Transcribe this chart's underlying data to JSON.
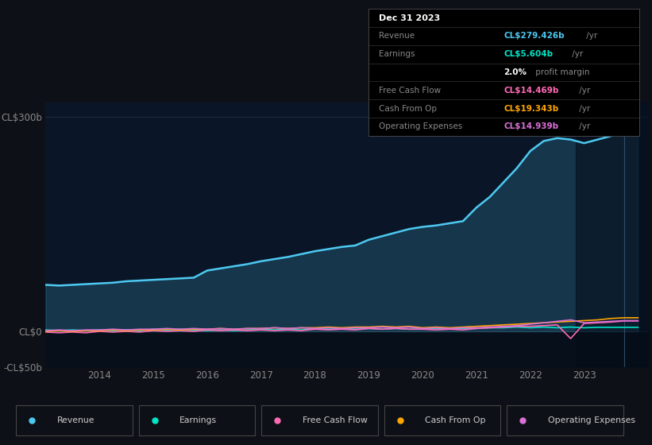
{
  "bg_color": "#0d1117",
  "plot_bg_color": "#0a1628",
  "plot_bg_below_zero": "#071020",
  "title": "Dec 31 2023",
  "years": [
    2013.0,
    2013.25,
    2013.5,
    2013.75,
    2014.0,
    2014.25,
    2014.5,
    2014.75,
    2015.0,
    2015.25,
    2015.5,
    2015.75,
    2016.0,
    2016.25,
    2016.5,
    2016.75,
    2017.0,
    2017.25,
    2017.5,
    2017.75,
    2018.0,
    2018.25,
    2018.5,
    2018.75,
    2019.0,
    2019.25,
    2019.5,
    2019.75,
    2020.0,
    2020.25,
    2020.5,
    2020.75,
    2021.0,
    2021.25,
    2021.5,
    2021.75,
    2022.0,
    2022.25,
    2022.5,
    2022.75,
    2023.0,
    2023.25,
    2023.5,
    2023.75,
    2024.0
  ],
  "revenue": [
    65,
    64,
    65,
    66,
    67,
    68,
    70,
    71,
    72,
    73,
    74,
    75,
    85,
    88,
    91,
    94,
    98,
    101,
    104,
    108,
    112,
    115,
    118,
    120,
    128,
    133,
    138,
    143,
    146,
    148,
    151,
    154,
    173,
    188,
    208,
    228,
    252,
    266,
    270,
    268,
    263,
    268,
    273,
    279,
    279
  ],
  "earnings": [
    2,
    1,
    2,
    1,
    2,
    1,
    2,
    1,
    3,
    2,
    3,
    2,
    1,
    2,
    1,
    2,
    3,
    2,
    3,
    2,
    4,
    3,
    4,
    3,
    4,
    3,
    4,
    3,
    3,
    4,
    3,
    4,
    4,
    5,
    5,
    6,
    5,
    6,
    5,
    6,
    5,
    5.6,
    5.6,
    5.6,
    5.6
  ],
  "free_cash_flow": [
    -1,
    -2,
    -1,
    -2,
    0,
    -1,
    0,
    -1,
    1,
    0,
    1,
    0,
    2,
    1,
    2,
    1,
    2,
    1,
    2,
    1,
    3,
    2,
    3,
    2,
    4,
    3,
    4,
    3,
    3,
    2,
    3,
    2,
    4,
    5,
    6,
    7,
    7,
    8,
    9,
    -10,
    11,
    12,
    13,
    14.5,
    14.5
  ],
  "cash_from_op": [
    0,
    1,
    0,
    1,
    1,
    2,
    1,
    2,
    2,
    3,
    2,
    3,
    3,
    4,
    3,
    4,
    4,
    5,
    4,
    5,
    5,
    6,
    5,
    6,
    6,
    7,
    6,
    7,
    5,
    6,
    5,
    6,
    7,
    8,
    9,
    10,
    11,
    12,
    13,
    14,
    15,
    16,
    18,
    19,
    19
  ],
  "operating_expenses": [
    1,
    2,
    1,
    2,
    2,
    3,
    2,
    3,
    3,
    4,
    3,
    4,
    3,
    4,
    3,
    4,
    4,
    5,
    4,
    5,
    4,
    5,
    4,
    5,
    5,
    6,
    5,
    6,
    4,
    5,
    4,
    5,
    5,
    6,
    7,
    8,
    10,
    12,
    14,
    16,
    12,
    13,
    14,
    15,
    15
  ],
  "revenue_color": "#4dc8f0",
  "earnings_color": "#00e5c8",
  "free_cash_flow_color": "#ff69b4",
  "cash_from_op_color": "#ffa500",
  "operating_expenses_color": "#da70d6",
  "ylim": [
    -50,
    320
  ],
  "yticks": [
    -50,
    0,
    300
  ],
  "ytick_labels": [
    "-CL$50b",
    "CL$0",
    "CL$300b"
  ],
  "xticks": [
    2014,
    2015,
    2016,
    2017,
    2018,
    2019,
    2020,
    2021,
    2022,
    2023
  ],
  "grid_color": "#2a3a4a",
  "tooltip": {
    "date": "Dec 31 2023",
    "rows": [
      {
        "label": "Revenue",
        "value": "CL$279.426b",
        "suffix": " /yr",
        "color": "#4dc8f0"
      },
      {
        "label": "Earnings",
        "value": "CL$5.604b",
        "suffix": " /yr",
        "color": "#00e5c8"
      },
      {
        "label": "",
        "value": "2.0%",
        "suffix": " profit margin",
        "color": "#ffffff"
      },
      {
        "label": "Free Cash Flow",
        "value": "CL$14.469b",
        "suffix": " /yr",
        "color": "#ff69b4"
      },
      {
        "label": "Cash From Op",
        "value": "CL$19.343b",
        "suffix": " /yr",
        "color": "#ffa500"
      },
      {
        "label": "Operating Expenses",
        "value": "CL$14.939b",
        "suffix": " /yr",
        "color": "#da70d6"
      }
    ]
  },
  "legend_items": [
    {
      "label": "Revenue",
      "color": "#4dc8f0"
    },
    {
      "label": "Earnings",
      "color": "#00e5c8"
    },
    {
      "label": "Free Cash Flow",
      "color": "#ff69b4"
    },
    {
      "label": "Cash From Op",
      "color": "#ffa500"
    },
    {
      "label": "Operating Expenses",
      "color": "#da70d6"
    }
  ]
}
